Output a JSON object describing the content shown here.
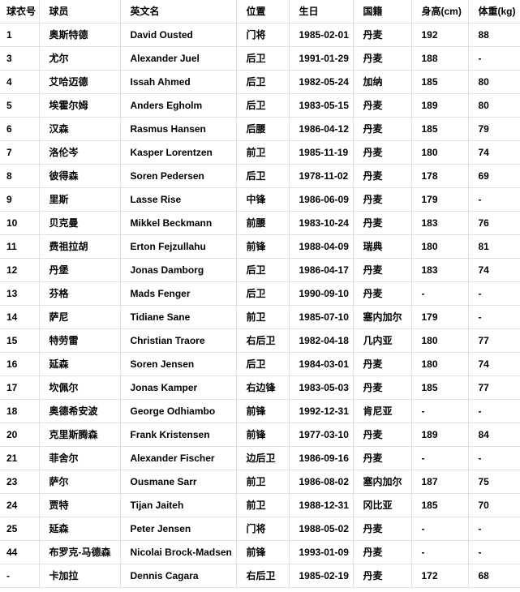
{
  "colors": {
    "border": "#e1e1e1",
    "text": "#000000",
    "background": "#ffffff"
  },
  "chart_data": {
    "type": "table",
    "title": "",
    "columns": [
      {
        "key": "number",
        "label": "球衣号"
      },
      {
        "key": "name",
        "label": "球员"
      },
      {
        "key": "name_en",
        "label": "英文名"
      },
      {
        "key": "position",
        "label": "位置"
      },
      {
        "key": "birthday",
        "label": "生日"
      },
      {
        "key": "nationality",
        "label": "国籍"
      },
      {
        "key": "height",
        "label": "身高(cm)"
      },
      {
        "key": "weight",
        "label": "体重(kg)"
      }
    ],
    "rows": [
      {
        "number": "1",
        "name": "奥斯特德",
        "name_en": "David Ousted",
        "position": "门将",
        "birthday": "1985-02-01",
        "nationality": "丹麦",
        "height": "192",
        "weight": "88"
      },
      {
        "number": "3",
        "name": "尤尔",
        "name_en": "Alexander Juel",
        "position": "后卫",
        "birthday": "1991-01-29",
        "nationality": "丹麦",
        "height": "188",
        "weight": "-"
      },
      {
        "number": "4",
        "name": "艾哈迈德",
        "name_en": "Issah Ahmed",
        "position": "后卫",
        "birthday": "1982-05-24",
        "nationality": "加纳",
        "height": "185",
        "weight": "80"
      },
      {
        "number": "5",
        "name": "埃霍尔姆",
        "name_en": "Anders Egholm",
        "position": "后卫",
        "birthday": "1983-05-15",
        "nationality": "丹麦",
        "height": "189",
        "weight": "80"
      },
      {
        "number": "6",
        "name": "汉森",
        "name_en": "Rasmus Hansen",
        "position": "后腰",
        "birthday": "1986-04-12",
        "nationality": "丹麦",
        "height": "185",
        "weight": "79"
      },
      {
        "number": "7",
        "name": "洛伦岑",
        "name_en": "Kasper Lorentzen",
        "position": "前卫",
        "birthday": "1985-11-19",
        "nationality": "丹麦",
        "height": "180",
        "weight": "74"
      },
      {
        "number": "8",
        "name": "彼得森",
        "name_en": "Soren Pedersen",
        "position": "后卫",
        "birthday": "1978-11-02",
        "nationality": "丹麦",
        "height": "178",
        "weight": "69"
      },
      {
        "number": "9",
        "name": "里斯",
        "name_en": "Lasse Rise",
        "position": "中锋",
        "birthday": "1986-06-09",
        "nationality": "丹麦",
        "height": "179",
        "weight": "-"
      },
      {
        "number": "10",
        "name": "贝克曼",
        "name_en": "Mikkel Beckmann",
        "position": "前腰",
        "birthday": "1983-10-24",
        "nationality": "丹麦",
        "height": "183",
        "weight": "76"
      },
      {
        "number": "11",
        "name": "费祖拉胡",
        "name_en": "Erton Fejzullahu",
        "position": "前锋",
        "birthday": "1988-04-09",
        "nationality": "瑞典",
        "height": "180",
        "weight": "81"
      },
      {
        "number": "12",
        "name": "丹堡",
        "name_en": "Jonas Damborg",
        "position": "后卫",
        "birthday": "1986-04-17",
        "nationality": "丹麦",
        "height": "183",
        "weight": "74"
      },
      {
        "number": "13",
        "name": "芬格",
        "name_en": "Mads Fenger",
        "position": "后卫",
        "birthday": "1990-09-10",
        "nationality": "丹麦",
        "height": "-",
        "weight": "-"
      },
      {
        "number": "14",
        "name": "萨尼",
        "name_en": "Tidiane Sane",
        "position": "前卫",
        "birthday": "1985-07-10",
        "nationality": "塞内加尔",
        "height": "179",
        "weight": "-"
      },
      {
        "number": "15",
        "name": "特劳雷",
        "name_en": "Christian Traore",
        "position": "右后卫",
        "birthday": "1982-04-18",
        "nationality": "几内亚",
        "height": "180",
        "weight": "77"
      },
      {
        "number": "16",
        "name": "延森",
        "name_en": "Soren Jensen",
        "position": "后卫",
        "birthday": "1984-03-01",
        "nationality": "丹麦",
        "height": "180",
        "weight": "74"
      },
      {
        "number": "17",
        "name": "坎佩尔",
        "name_en": "Jonas Kamper",
        "position": "右边锋",
        "birthday": "1983-05-03",
        "nationality": "丹麦",
        "height": "185",
        "weight": "77"
      },
      {
        "number": "18",
        "name": "奥德希安波",
        "name_en": "George Odhiambo",
        "position": "前锋",
        "birthday": "1992-12-31",
        "nationality": "肯尼亚",
        "height": "-",
        "weight": "-"
      },
      {
        "number": "20",
        "name": "克里斯腾森",
        "name_en": "Frank Kristensen",
        "position": "前锋",
        "birthday": "1977-03-10",
        "nationality": "丹麦",
        "height": "189",
        "weight": "84"
      },
      {
        "number": "21",
        "name": "菲舍尔",
        "name_en": "Alexander Fischer",
        "position": "边后卫",
        "birthday": "1986-09-16",
        "nationality": "丹麦",
        "height": "-",
        "weight": "-"
      },
      {
        "number": "23",
        "name": "萨尔",
        "name_en": "Ousmane Sarr",
        "position": "前卫",
        "birthday": "1986-08-02",
        "nationality": "塞内加尔",
        "height": "187",
        "weight": "75"
      },
      {
        "number": "24",
        "name": "贾特",
        "name_en": "Tijan Jaiteh",
        "position": "前卫",
        "birthday": "1988-12-31",
        "nationality": "冈比亚",
        "height": "185",
        "weight": "70"
      },
      {
        "number": "25",
        "name": "延森",
        "name_en": "Peter Jensen",
        "position": "门将",
        "birthday": "1988-05-02",
        "nationality": "丹麦",
        "height": "-",
        "weight": "-"
      },
      {
        "number": "44",
        "name": "布罗克-马德森",
        "name_en": "Nicolai Brock-Madsen",
        "position": "前锋",
        "birthday": "1993-01-09",
        "nationality": "丹麦",
        "height": "-",
        "weight": "-"
      },
      {
        "number": "-",
        "name": "卡加拉",
        "name_en": "Dennis Cagara",
        "position": "右后卫",
        "birthday": "1985-02-19",
        "nationality": "丹麦",
        "height": "172",
        "weight": "68"
      }
    ]
  }
}
